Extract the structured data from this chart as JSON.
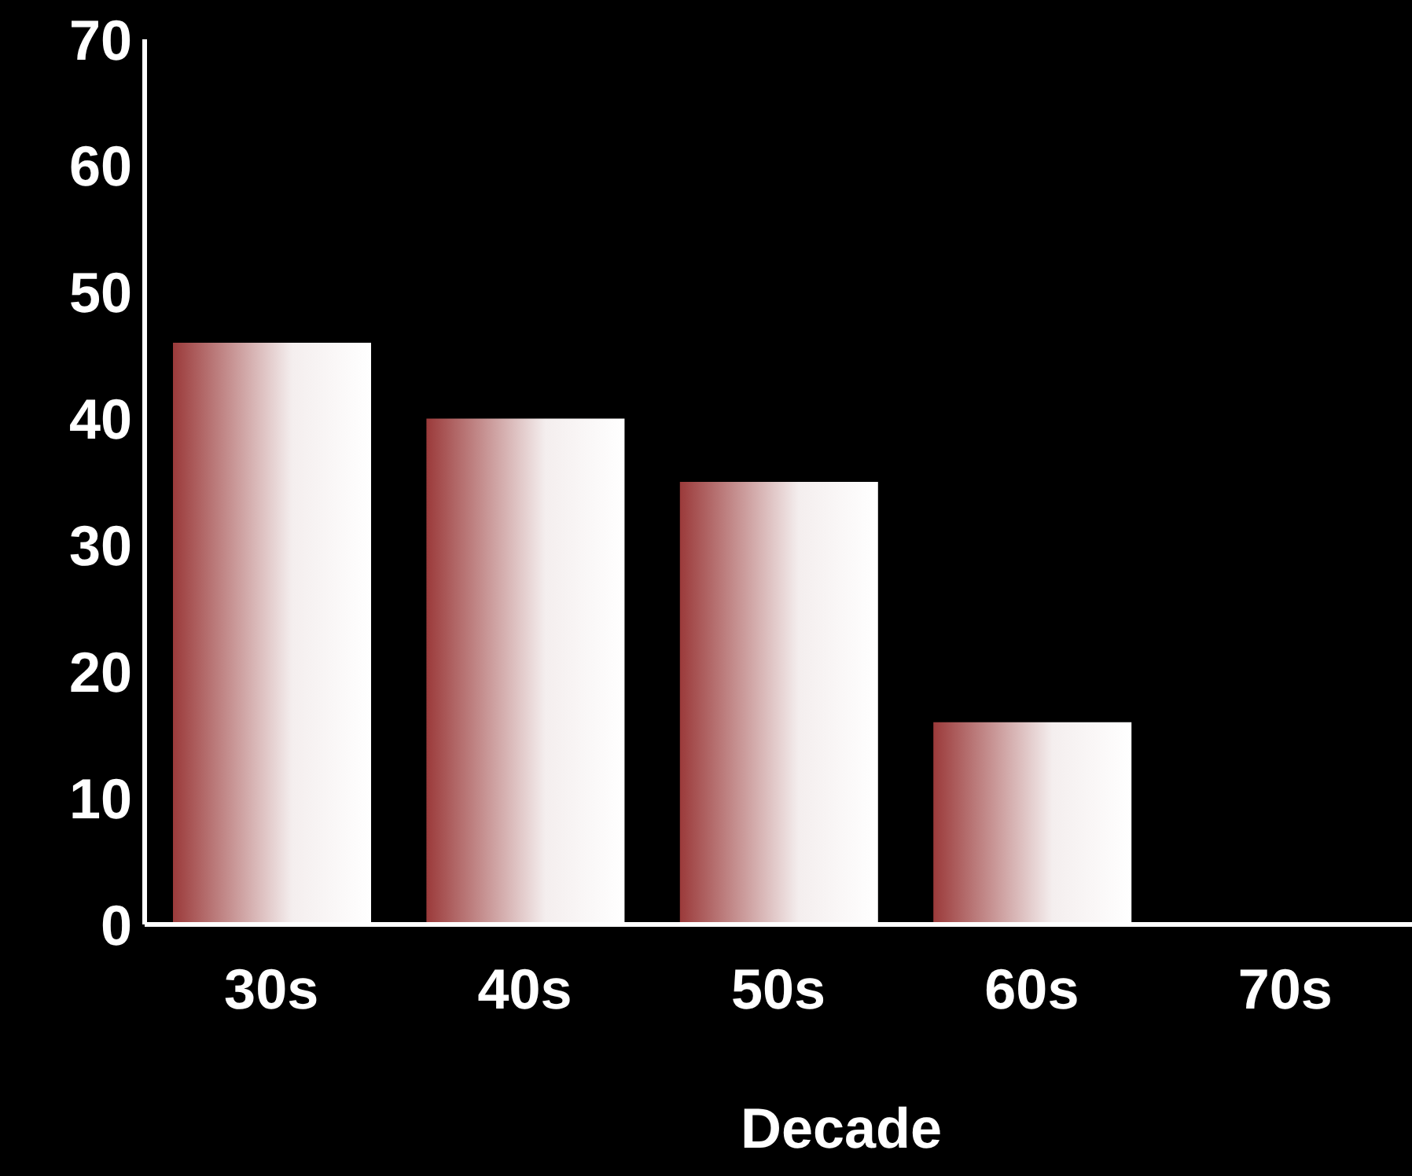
{
  "chart_data": {
    "type": "bar",
    "xlabel": "Decade",
    "categories": [
      "30s",
      "40s",
      "50s",
      "60s",
      "70s"
    ],
    "values": [
      46,
      40,
      35,
      16,
      0
    ],
    "color": "#9b3a3a",
    "ylim": [
      0,
      70
    ],
    "yticks": [
      0,
      10,
      20,
      30,
      40,
      50,
      60,
      70
    ],
    "grid": false
  }
}
